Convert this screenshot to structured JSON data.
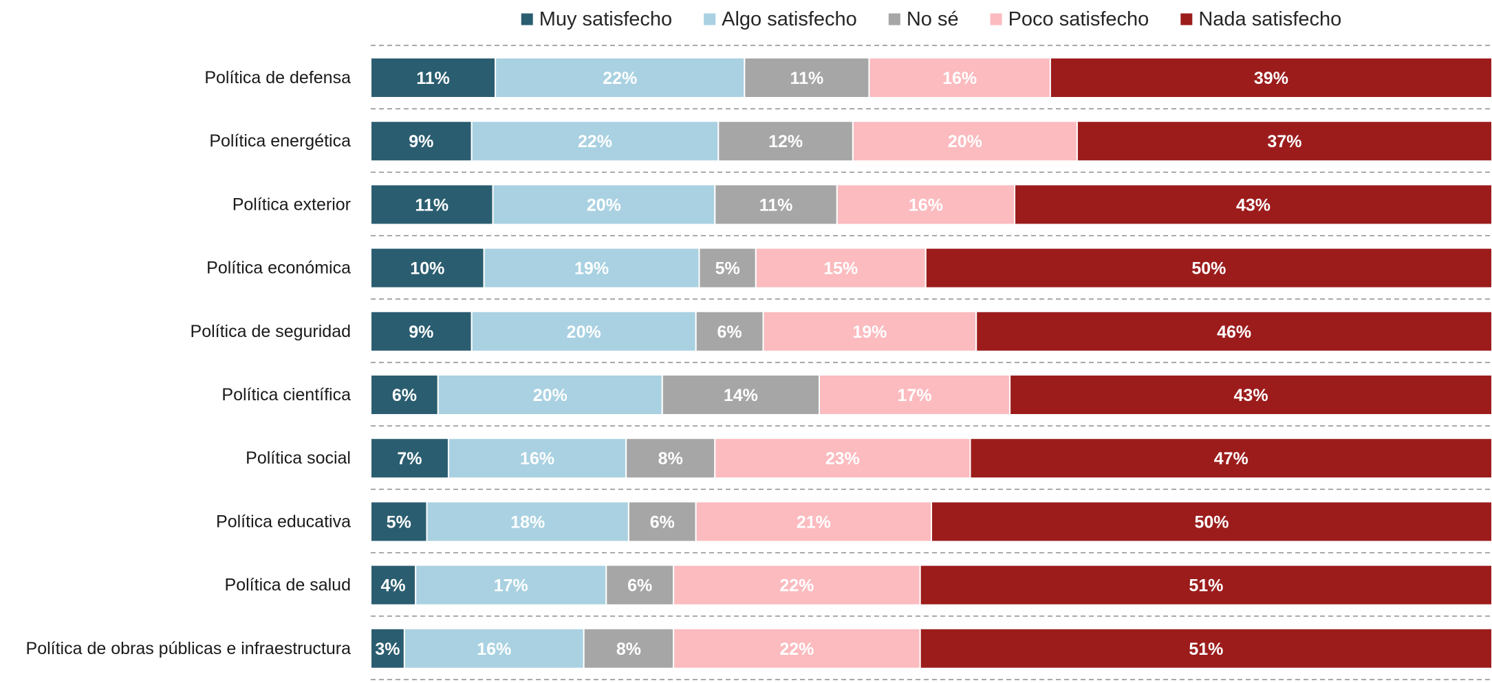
{
  "chart_data": {
    "type": "bar",
    "orientation": "horizontal",
    "stacked": true,
    "normalized": true,
    "title": "",
    "xlabel": "",
    "ylabel": "",
    "xlim": [
      0,
      100
    ],
    "grid": false,
    "legend_position": "top",
    "value_format": "{v}%",
    "categories": [
      "Política de defensa",
      "Política energética",
      "Política exterior",
      "Política económica",
      "Política de seguridad",
      "Política científica",
      "Política social",
      "Política educativa",
      "Política de salud",
      "Política de obras públicas e infraestructura"
    ],
    "series": [
      {
        "name": "Muy satisfecho",
        "color": "#2b5d70",
        "label_color": "#ffffff",
        "values": [
          11,
          9,
          11,
          10,
          9,
          6,
          7,
          5,
          4,
          3
        ]
      },
      {
        "name": "Algo satisfecho",
        "color": "#a9d1e1",
        "label_color": "#ffffff",
        "values": [
          22,
          22,
          20,
          19,
          20,
          20,
          16,
          18,
          17,
          16
        ]
      },
      {
        "name": "No sé",
        "color": "#a6a6a6",
        "label_color": "#ffffff",
        "values": [
          11,
          12,
          11,
          5,
          6,
          14,
          8,
          6,
          6,
          8
        ]
      },
      {
        "name": "Poco satisfecho",
        "color": "#fbbbbf",
        "label_color": "#ffffff",
        "values": [
          16,
          20,
          16,
          15,
          19,
          17,
          23,
          21,
          22,
          22
        ]
      },
      {
        "name": "Nada satisfecho",
        "color": "#9c1c1c",
        "label_color": "#ffffff",
        "values": [
          39,
          37,
          43,
          50,
          46,
          43,
          47,
          50,
          51,
          51
        ]
      }
    ]
  }
}
